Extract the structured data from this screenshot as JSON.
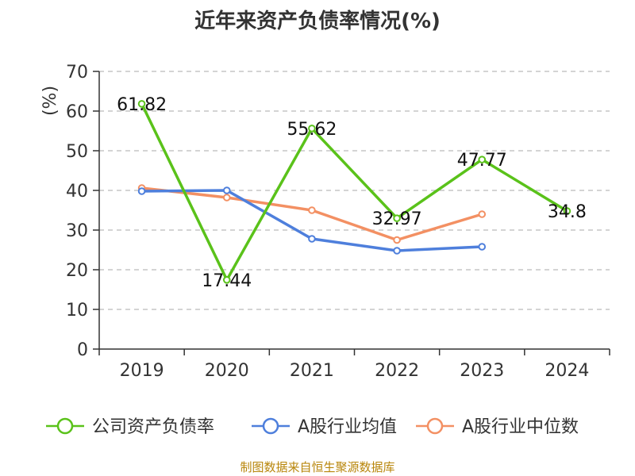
{
  "title": "近年来资产负债率情况(%)",
  "source": "制图数据来自恒生聚源数据库",
  "colors": {
    "company": "#5ac21a",
    "industry_avg": "#4e7fdc",
    "industry_median": "#f39063",
    "axis": "#333333",
    "grid": "#bbbbbb",
    "unit": "#cc0000"
  },
  "chart_data": {
    "type": "line",
    "ylabel": "(%)",
    "ylim": [
      0,
      70
    ],
    "yticks": [
      0,
      10,
      20,
      30,
      40,
      50,
      60,
      70
    ],
    "grid": "horizontal-dashed",
    "legend_position": "bottom",
    "categories": [
      "2019",
      "2020",
      "2021",
      "2022",
      "2023",
      "2024"
    ],
    "series": [
      {
        "name": "公司资产负债率",
        "color": "#5ac21a",
        "values": [
          61.82,
          17.44,
          55.62,
          32.97,
          47.77,
          34.8
        ],
        "labels": [
          "61.82",
          "17.44",
          "55.62",
          "32.97",
          "47.77",
          "34.8"
        ],
        "show_labels": true
      },
      {
        "name": "A股行业均值",
        "color": "#4e7fdc",
        "values": [
          39.8,
          40.0,
          27.8,
          24.8,
          25.8,
          null
        ],
        "show_labels": false
      },
      {
        "name": "A股行业中位数",
        "color": "#f39063",
        "values": [
          40.6,
          38.2,
          35.0,
          27.5,
          34.0,
          null
        ],
        "show_labels": false
      }
    ]
  }
}
